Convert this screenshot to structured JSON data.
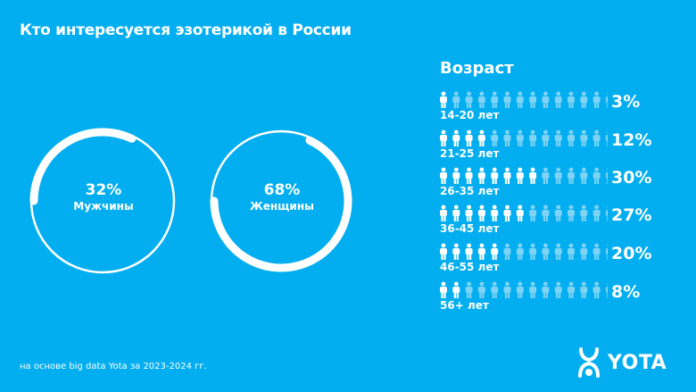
{
  "title": "Кто интересуется эзотерикой в России",
  "chart_data": [
    {
      "type": "pie",
      "variant": "ring",
      "categories": [
        "Мужчины",
        "Женщины"
      ],
      "values": [
        32,
        68
      ],
      "labels": [
        "32%",
        "68%"
      ]
    },
    {
      "type": "bar",
      "variant": "pictogram",
      "title": "Возраст",
      "categories": [
        "14-20 лет",
        "21-25 лет",
        "26-35 лет",
        "36-45 лет",
        "46-55 лет",
        "56+ лет"
      ],
      "values": [
        3,
        12,
        30,
        27,
        20,
        8
      ],
      "labels": [
        "3%",
        "12%",
        "30%",
        "27%",
        "20%",
        "8%"
      ],
      "icons_total": 14,
      "icons_filled": [
        1,
        4,
        8,
        7,
        5,
        2
      ]
    }
  ],
  "colors": {
    "background": "#02AEEF",
    "filled": "#FFFFFF",
    "unfilled": "#7FD3F5"
  },
  "footnote": "на основе big data Yota за 2023-2024 гг.",
  "brand": {
    "name": "YOTA"
  }
}
